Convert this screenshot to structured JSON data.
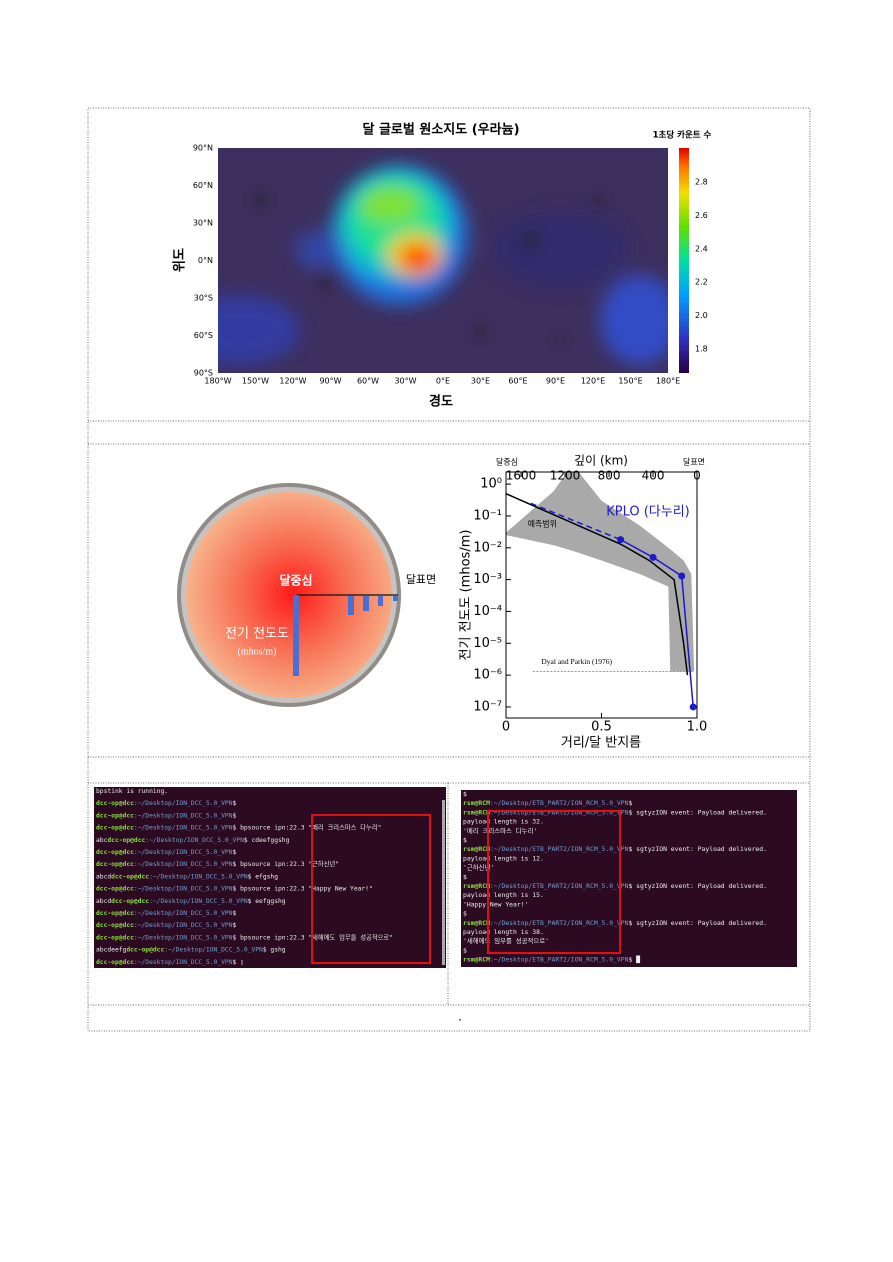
{
  "map_figure": {
    "title": "달 글로벌 원소지도 (우라늄)",
    "colorbar_label": "1초당 카운트 수",
    "colorbar_ticks": [
      "2.8",
      "2.6",
      "2.4",
      "2.2",
      "2.0",
      "1.8"
    ],
    "y_label": "위도",
    "x_label": "경도",
    "lat_ticks": [
      "90°N",
      "60°N",
      "30°N",
      "0°N",
      "30°S",
      "60°S",
      "90°S"
    ],
    "lon_ticks": [
      "180°W",
      "150°W",
      "120°W",
      "90°W",
      "60°W",
      "30°W",
      "0°E",
      "30°E",
      "60°E",
      "90°E",
      "120°E",
      "150°E",
      "180°E"
    ]
  },
  "diagram": {
    "center": "달중심",
    "surface": "달표면",
    "label": "전기 전도도",
    "unit": "(mhos/m)"
  },
  "chart_data": {
    "type": "line",
    "log_y": true,
    "x_label": "거리/달 반지름",
    "y_label": "전기 전도도 (mhos/m)",
    "top_axis_label": "깊이 (km)",
    "top_left_label": "달중심",
    "top_right_label": "달표면",
    "xlim": [
      0,
      1
    ],
    "xticks": [
      0,
      0.5,
      {
        "value": 1,
        "label": "1.0"
      }
    ],
    "x2lim": [
      1737,
      0
    ],
    "x2ticks": [
      1600,
      1200,
      800,
      400,
      0
    ],
    "ylim": [
      4.5e-08,
      2.4
    ],
    "yticks": [
      {
        "value": 1,
        "label": "10⁰"
      },
      {
        "value": 0.1,
        "label": "10⁻¹"
      },
      {
        "value": 0.01,
        "label": "10⁻²"
      },
      {
        "value": 0.001,
        "label": "10⁻³"
      },
      {
        "value": 0.0001,
        "label": "10⁻⁴"
      },
      {
        "value": 1e-05,
        "label": "10⁻⁵"
      },
      {
        "value": 1e-06,
        "label": "10⁻⁶"
      },
      {
        "value": 1e-07,
        "label": "10⁻⁷"
      }
    ],
    "band": {
      "label": "예측범위",
      "color": "#a9a9a9",
      "x": [
        0,
        0.25,
        0.32,
        0.38,
        0.5,
        0.7,
        0.85,
        0.86,
        0.93,
        0.97,
        0.985
      ],
      "upper": [
        0.03,
        0.6,
        2.4,
        2.4,
        0.3,
        0.05,
        0.01,
        0.009,
        0.004,
        0.0015,
        1.3e-06
      ],
      "lower": [
        0.025,
        0.012,
        0.009,
        0.007,
        0.004,
        0.0015,
        0.0006,
        1.3e-06,
        1.3e-06,
        1.3e-06,
        1.3e-06
      ]
    },
    "series": [
      {
        "color": "#000000",
        "x": [
          0,
          0.6,
          0.75,
          0.88,
          0.93,
          0.95
        ],
        "values": [
          0.5,
          0.013,
          0.004,
          0.001,
          1e-05,
          1e-06
        ]
      },
      {
        "color": "#1a1ad0",
        "dashed": true,
        "x": [
          0.13,
          0.6
        ],
        "values": [
          0.25,
          0.018
        ]
      },
      {
        "name": "KPLO (다누리)",
        "color": "#1a1ad0",
        "markers": true,
        "x": [
          0.6,
          0.77,
          0.92,
          0.98
        ],
        "values": [
          0.018,
          0.005,
          0.0013,
          1e-07
        ]
      }
    ],
    "reference": {
      "text": "Dyal and Parkin (1976)",
      "y": 1.3e-06,
      "x": [
        0.14,
        0.98
      ]
    }
  },
  "terminal_left": [
    {
      "cmd": "bpstink is running."
    },
    {
      "user": "dcc-op@dcc",
      "path": ":~/Desktop/ION_DCC_5.0_VPN",
      "cmd": "$"
    },
    {
      "user": "dcc-op@dcc",
      "path": ":~/Desktop/ION_DCC_5.0_VPN",
      "cmd": "$"
    },
    {
      "user": "dcc-op@dcc",
      "path": ":~/Desktop/ION_DCC_5.0_VPN",
      "cmd": "$ bpsource ipn:22.3 \"메리 크리스마스 다누리\""
    },
    {
      "pre": "abc",
      "user": "dcc-op@dcc",
      "path": ":~/Desktop/ION_DCC_5.0_VPN",
      "cmd": "$ cdeefggshg"
    },
    {
      "user": "dcc-op@dcc",
      "path": ":~/Desktop/ION_DCC_5.0_VPN",
      "cmd": "$"
    },
    {
      "user": "dcc-op@dcc",
      "path": ":~/Desktop/ION_DCC_5.0_VPN",
      "cmd": "$ bpsource ipn:22.3 \"근하신년\""
    },
    {
      "pre": "abcd",
      "user": "dcc-op@dcc",
      "path": ":~/Desktop/ION_DCC_5.0_VPN",
      "cmd": "$ efgshg"
    },
    {
      "user": "dcc-op@dcc",
      "path": ":~/Desktop/ION_DCC_5.0_VPN",
      "cmd": "$ bpsource ipn:22.3 \"Happy New Year!\""
    },
    {
      "pre": "abcd",
      "user": "dcc-op@dcc",
      "path": ":~/Desktop/ION_DCC_5.0_VPN",
      "cmd": "$ eefggshg"
    },
    {
      "user": "dcc-op@dcc",
      "path": ":~/Desktop/ION_DCC_5.0_VPN",
      "cmd": "$"
    },
    {
      "user": "dcc-op@dcc",
      "path": ":~/Desktop/ION_DCC_5.0_VPN",
      "cmd": "$"
    },
    {
      "user": "dcc-op@dcc",
      "path": ":~/Desktop/ION_DCC_5.0_VPN",
      "cmd": "$ bpsource ipn:22.3 \"새해에도 임무를 성공적으로\""
    },
    {
      "pre": "abcdeefg",
      "user": "dcc-op@dcc",
      "path": ":~/Desktop/ION_DCC_5.0_VPN",
      "cmd": "$ gshg"
    },
    {
      "user": "dcc-op@dcc",
      "path": ":~/Desktop/ION_DCC_5.0_VPN",
      "cmd": "$ ▯"
    }
  ],
  "terminal_right": [
    {
      "cmd": "$"
    },
    {
      "user": "rsm@RCM",
      "path": ":~/Desktop/ETB_PART2/ION_RCM_5.0_VPN",
      "cmd": "$"
    },
    {
      "user": "rsm@RCM",
      "path": ":~/Desktop/ETB_PART2/ION_RCM_5.0_VPN",
      "cmd": "$ sgtyzION event: Payload delivered."
    },
    {
      "cmd": "    payload length is 32."
    },
    {
      "cmd": "    '메리 크리스마스 다누리'"
    },
    {
      "cmd": "$"
    },
    {
      "user": "rsm@RCM",
      "path": ":~/Desktop/ETB_PART2/ION_RCM_5.0_VPN",
      "cmd": "$ sgtyzION event: Payload delivered."
    },
    {
      "cmd": "    payload length is 12."
    },
    {
      "cmd": "    '근하신년'"
    },
    {
      "cmd": "$"
    },
    {
      "user": "rsm@RCM",
      "path": ":~/Desktop/ETB_PART2/ION_RCM_5.0_VPN",
      "cmd": "$ sgtyzION event: Payload delivered."
    },
    {
      "cmd": "    payload length is 15."
    },
    {
      "cmd": "    'Happy New Year!'"
    },
    {
      "cmd": "$"
    },
    {
      "user": "rsm@RCM",
      "path": ":~/Desktop/ETB_PART2/ION_RCM_5.0_VPN",
      "cmd": "$ sgtyzION event: Payload delivered."
    },
    {
      "cmd": "    payload length is 38."
    },
    {
      "cmd": "    '새해에도 임무를 성공적으로'"
    },
    {
      "cmd": "$"
    },
    {
      "user": "rsm@RCM",
      "path": ":~/Desktop/ETB_PART2/ION_RCM_5.0_VPN",
      "cmd": "$ █"
    }
  ],
  "footer_text": "."
}
